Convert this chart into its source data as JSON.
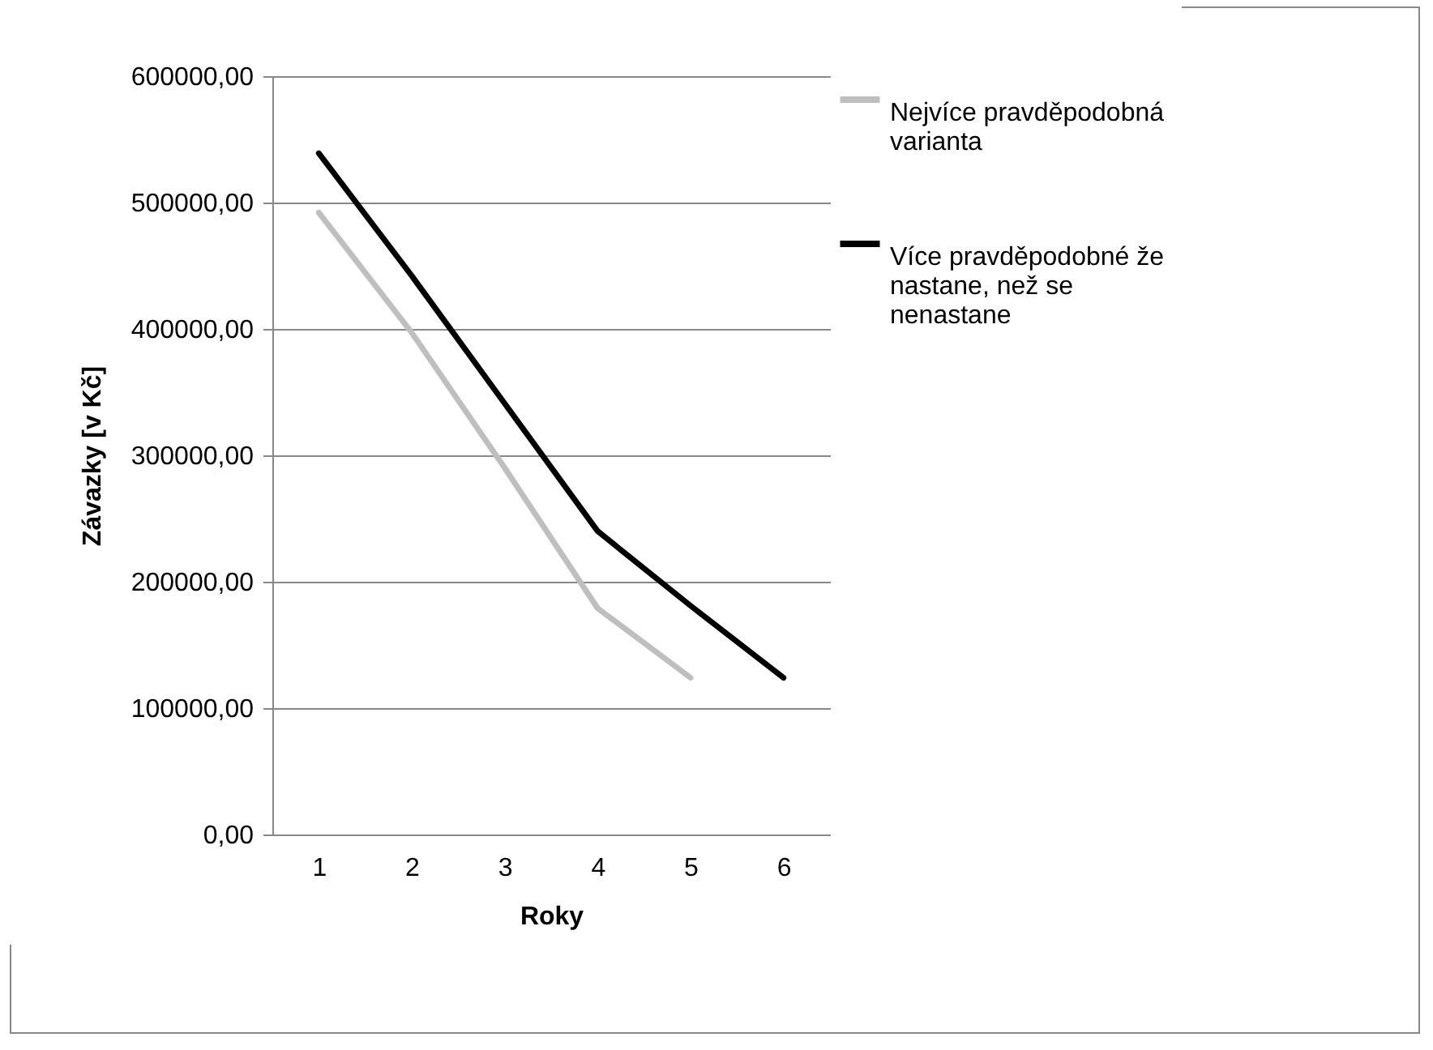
{
  "chart_data": {
    "type": "line",
    "xlabel": "Roky",
    "ylabel": "Závazky [v Kč]",
    "categories": [
      "1",
      "2",
      "3",
      "4",
      "5",
      "6"
    ],
    "series": [
      {
        "name": "Nejvíce pravděpodobná varianta",
        "color": "#bfbfbf",
        "values": [
          492000,
          397000,
          290000,
          179000,
          124000,
          null
        ]
      },
      {
        "name": "Více pravděpodobné že nastane, než se nenastane",
        "color": "#000000",
        "values": [
          539000,
          442000,
          341000,
          240000,
          181000,
          124000
        ]
      }
    ],
    "ylim": [
      0,
      600000
    ],
    "yticks": [
      {
        "value": 0,
        "label": "0,00"
      },
      {
        "value": 100000,
        "label": "100000,00"
      },
      {
        "value": 200000,
        "label": "200000,00"
      },
      {
        "value": 300000,
        "label": "300000,00"
      },
      {
        "value": 400000,
        "label": "400000,00"
      },
      {
        "value": 500000,
        "label": "500000,00"
      },
      {
        "value": 600000,
        "label": "600000,00"
      }
    ],
    "grid": "y",
    "legend": "right",
    "marker": "none",
    "line_style": "solid"
  }
}
